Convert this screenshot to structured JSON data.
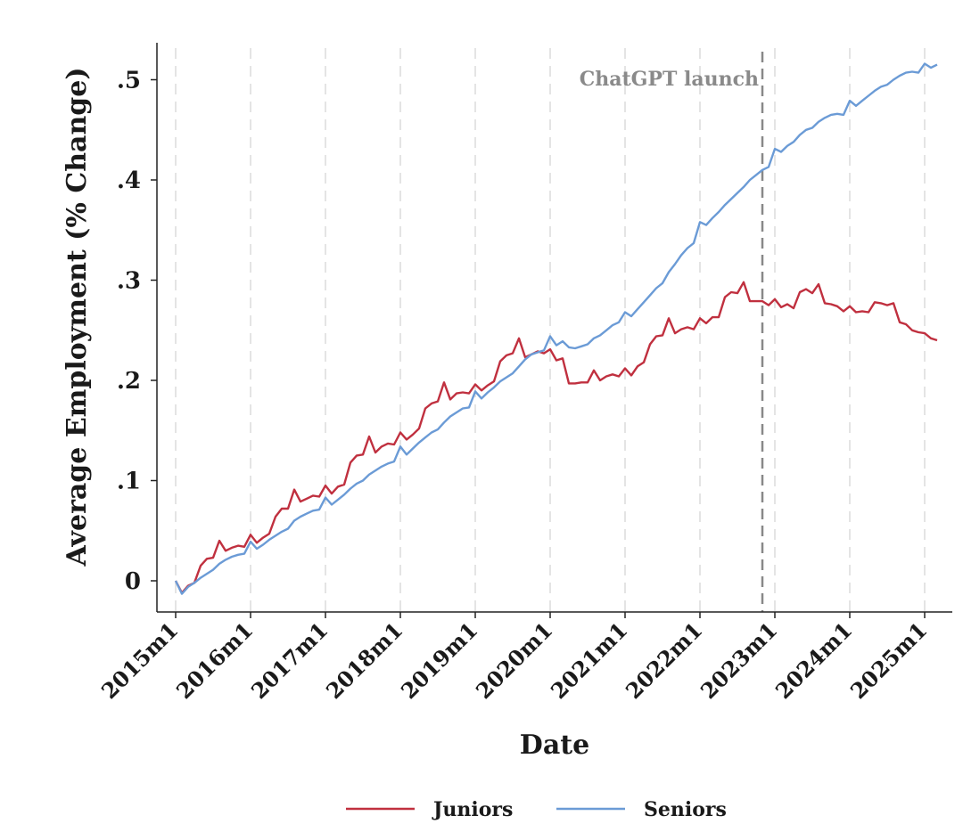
{
  "chart_data": {
    "type": "line",
    "xlabel": "Date",
    "ylabel": "Average Employment (% Change)",
    "x_start": "2015m1",
    "x_tick_labels": [
      "2015m1",
      "2016m1",
      "2017m1",
      "2018m1",
      "2019m1",
      "2020m1",
      "2021m1",
      "2022m1",
      "2023m1",
      "2024m1",
      "2025m1"
    ],
    "y_ticks": [
      0,
      0.1,
      0.2,
      0.3,
      0.4,
      0.5
    ],
    "y_tick_labels": [
      "0",
      ".1",
      ".2",
      ".3",
      ".4",
      ".5"
    ],
    "ylim": [
      -0.033,
      0.535
    ],
    "xlim": [
      "2014m11",
      "2025m5"
    ],
    "grid": "vertical dashed at each year",
    "legend_position": "bottom",
    "annotation": {
      "text": "ChatGPT launch",
      "x": "2022m11",
      "color": "#888888"
    },
    "series": [
      {
        "name": "Juniors",
        "color": "#c0303f",
        "values": [
          0.0,
          -0.012,
          -0.005,
          -0.002,
          0.015,
          0.022,
          0.023,
          0.04,
          0.03,
          0.033,
          0.035,
          0.034,
          0.046,
          0.038,
          0.043,
          0.047,
          0.064,
          0.072,
          0.072,
          0.091,
          0.079,
          0.082,
          0.085,
          0.084,
          0.095,
          0.087,
          0.094,
          0.096,
          0.118,
          0.125,
          0.126,
          0.144,
          0.128,
          0.134,
          0.137,
          0.136,
          0.148,
          0.141,
          0.146,
          0.152,
          0.172,
          0.177,
          0.179,
          0.198,
          0.181,
          0.187,
          0.188,
          0.187,
          0.196,
          0.19,
          0.195,
          0.199,
          0.219,
          0.225,
          0.227,
          0.242,
          0.223,
          0.226,
          0.229,
          0.227,
          0.231,
          0.22,
          0.222,
          0.197,
          0.197,
          0.198,
          0.198,
          0.21,
          0.2,
          0.204,
          0.206,
          0.204,
          0.212,
          0.205,
          0.214,
          0.218,
          0.236,
          0.244,
          0.245,
          0.262,
          0.247,
          0.251,
          0.253,
          0.251,
          0.262,
          0.257,
          0.263,
          0.263,
          0.283,
          0.288,
          0.287,
          0.298,
          0.279,
          0.279,
          0.279,
          0.275,
          0.281,
          0.273,
          0.276,
          0.272,
          0.288,
          0.291,
          0.287,
          0.296,
          0.277,
          0.276,
          0.274,
          0.269,
          0.274,
          0.268,
          0.269,
          0.268,
          0.278,
          0.277,
          0.275,
          0.277,
          0.258,
          0.256,
          0.25,
          0.248,
          0.247,
          0.242,
          0.24
        ]
      },
      {
        "name": "Seniors",
        "color": "#6b9bd6",
        "values": [
          0.0,
          -0.013,
          -0.006,
          -0.002,
          0.003,
          0.007,
          0.011,
          0.017,
          0.021,
          0.024,
          0.026,
          0.027,
          0.039,
          0.032,
          0.036,
          0.041,
          0.045,
          0.049,
          0.052,
          0.06,
          0.064,
          0.067,
          0.07,
          0.071,
          0.083,
          0.076,
          0.081,
          0.086,
          0.092,
          0.097,
          0.1,
          0.106,
          0.11,
          0.114,
          0.117,
          0.119,
          0.134,
          0.126,
          0.132,
          0.138,
          0.143,
          0.148,
          0.151,
          0.158,
          0.164,
          0.168,
          0.172,
          0.173,
          0.189,
          0.182,
          0.188,
          0.193,
          0.199,
          0.203,
          0.207,
          0.214,
          0.221,
          0.226,
          0.228,
          0.23,
          0.244,
          0.235,
          0.239,
          0.233,
          0.232,
          0.234,
          0.236,
          0.242,
          0.245,
          0.25,
          0.255,
          0.258,
          0.268,
          0.264,
          0.271,
          0.278,
          0.285,
          0.292,
          0.297,
          0.308,
          0.316,
          0.325,
          0.332,
          0.337,
          0.358,
          0.355,
          0.362,
          0.368,
          0.375,
          0.381,
          0.387,
          0.393,
          0.4,
          0.405,
          0.41,
          0.413,
          0.431,
          0.428,
          0.434,
          0.438,
          0.445,
          0.45,
          0.452,
          0.458,
          0.462,
          0.465,
          0.466,
          0.465,
          0.479,
          0.474,
          0.479,
          0.484,
          0.489,
          0.493,
          0.495,
          0.5,
          0.504,
          0.507,
          0.508,
          0.507,
          0.516,
          0.512,
          0.515
        ]
      }
    ]
  }
}
